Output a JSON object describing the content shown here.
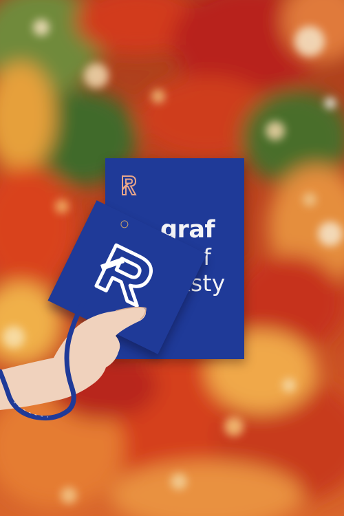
{
  "booklet": {
    "line1": "graf",
    "line2": "conf",
    "line3": "eksty"
  },
  "colors": {
    "booklet_blue": "#1f3a98",
    "logo_copper": "#e7a58a",
    "text_white": "#f3f3f6",
    "foliage_red": "#c9321d",
    "foliage_orange": "#e88a3a",
    "foliage_green": "#3f6b2a"
  },
  "icons": {
    "booklet_logo": "r-monogram-icon",
    "badge_logo": "r-monogram-icon"
  }
}
